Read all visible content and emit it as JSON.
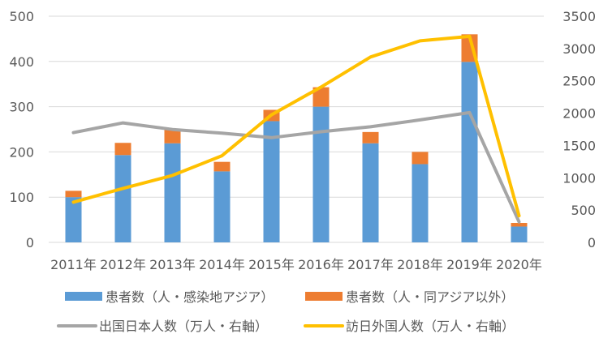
{
  "chart_data": {
    "type": "bar",
    "stacked": true,
    "categories": [
      "2011年",
      "2012年",
      "2013年",
      "2014年",
      "2015年",
      "2016年",
      "2017年",
      "2018年",
      "2019年",
      "2020年"
    ],
    "series": [
      {
        "name": "患者数（人・感染地アジア）",
        "type": "bar",
        "axis": "left",
        "color": "#5B9BD5",
        "values": [
          100,
          193,
          219,
          157,
          268,
          300,
          219,
          173,
          399,
          35
        ]
      },
      {
        "name": "患者数（人・同アジア以外）",
        "type": "bar",
        "axis": "left",
        "color": "#ED7D31",
        "values": [
          14,
          27,
          31,
          21,
          25,
          43,
          25,
          27,
          61,
          8
        ]
      },
      {
        "name": "出国日本人数（万人・右軸）",
        "type": "line",
        "axis": "right",
        "color": "#A5A5A5",
        "values": [
          1699,
          1849,
          1747,
          1690,
          1621,
          1712,
          1789,
          1895,
          2008,
          317
        ]
      },
      {
        "name": "訪日外国人数（万人・右軸）",
        "type": "line",
        "axis": "right",
        "color": "#FFC000",
        "values": [
          622,
          836,
          1036,
          1341,
          1974,
          2404,
          2869,
          3119,
          3188,
          412
        ]
      }
    ],
    "left_axis": {
      "min": 0,
      "max": 500,
      "ticks": [
        "0",
        "100",
        "200",
        "300",
        "400",
        "500"
      ]
    },
    "right_axis": {
      "min": 0,
      "max": 3500,
      "ticks": [
        "0",
        "500",
        "1000",
        "1500",
        "2000",
        "2500",
        "3000",
        "3500"
      ]
    },
    "grid": true,
    "legend_position": "bottom"
  }
}
